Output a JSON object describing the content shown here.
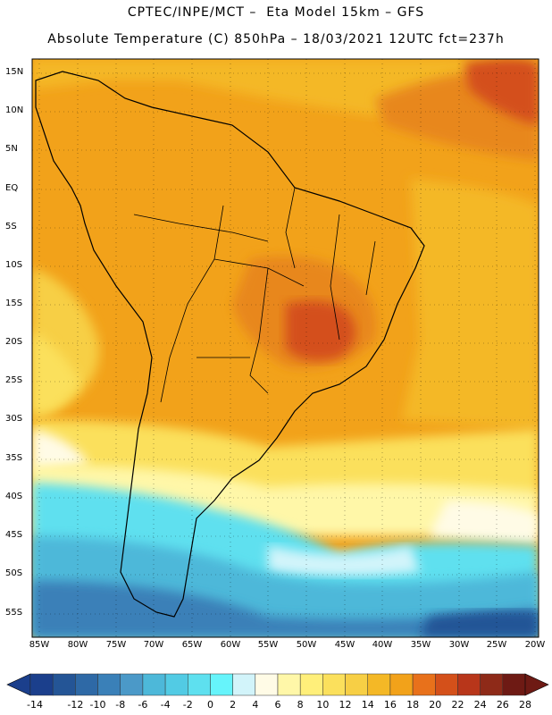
{
  "header": {
    "line1": "CPTEC/INPE/MCT –  Eta Model 15km – GFS",
    "line2": "Absolute Temperature (C) 850hPa – 18/03/2021 12UTC fct=237h"
  },
  "map": {
    "lat_labels": [
      "15N",
      "10N",
      "5N",
      "EQ",
      "5S",
      "10S",
      "15S",
      "20S",
      "25S",
      "30S",
      "35S",
      "40S",
      "45S",
      "50S",
      "55S"
    ],
    "lon_labels": [
      "85W",
      "80W",
      "75W",
      "70W",
      "65W",
      "60W",
      "55W",
      "50W",
      "45W",
      "40W",
      "35W",
      "30W",
      "25W",
      "20W"
    ]
  },
  "colorbar": {
    "labels": [
      "-14",
      "-12",
      "-10",
      "-8",
      "-6",
      "-4",
      "-2",
      "0",
      "2",
      "4",
      "6",
      "8",
      "10",
      "12",
      "14",
      "16",
      "18",
      "20",
      "22",
      "24",
      "26",
      "28"
    ],
    "colors": [
      "#1b3f8c",
      "#245596",
      "#2e69a6",
      "#3a80b8",
      "#4b99c8",
      "#4db8d9",
      "#52cbe4",
      "#5ee0ef",
      "#66f4fb",
      "#d2f4fa",
      "#fffbe6",
      "#fff7a8",
      "#ffef7a",
      "#fbe05c",
      "#f7cf45",
      "#f4b826",
      "#f2a21a",
      "#e8711b",
      "#d4501a",
      "#b8361a",
      "#8e2a18",
      "#6e1a14"
    ]
  }
}
